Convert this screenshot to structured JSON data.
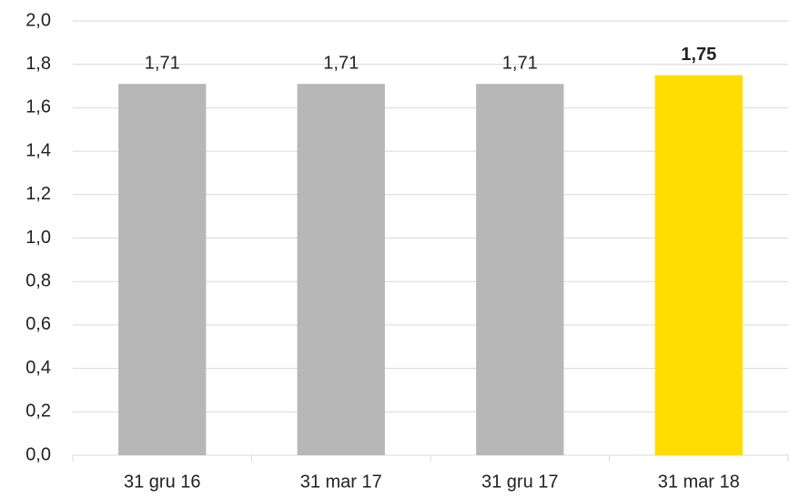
{
  "chart_data": {
    "type": "bar",
    "categories": [
      "31 gru 16",
      "31 mar 17",
      "31 gru 17",
      "31 mar 18"
    ],
    "values": [
      1.71,
      1.71,
      1.71,
      1.75
    ],
    "value_labels": [
      "1,71",
      "1,71",
      "1,71",
      "1,75"
    ],
    "colors": [
      "#b7b7b7",
      "#b7b7b7",
      "#b7b7b7",
      "#ffdd00"
    ],
    "ylim": [
      0,
      2
    ],
    "yticks": [
      {
        "value": 0,
        "label": "0,0"
      },
      {
        "value": 0.2,
        "label": "0,2"
      },
      {
        "value": 0.4,
        "label": "0,4"
      },
      {
        "value": 0.6,
        "label": "0,6"
      },
      {
        "value": 0.8,
        "label": "0,8"
      },
      {
        "value": 1,
        "label": "1,0"
      },
      {
        "value": 1.2,
        "label": "1,2"
      },
      {
        "value": 1.4,
        "label": "1,4"
      },
      {
        "value": 1.6,
        "label": "1,6"
      },
      {
        "value": 1.8,
        "label": "1,8"
      },
      {
        "value": 2,
        "label": "2,0"
      }
    ],
    "grid": true
  }
}
